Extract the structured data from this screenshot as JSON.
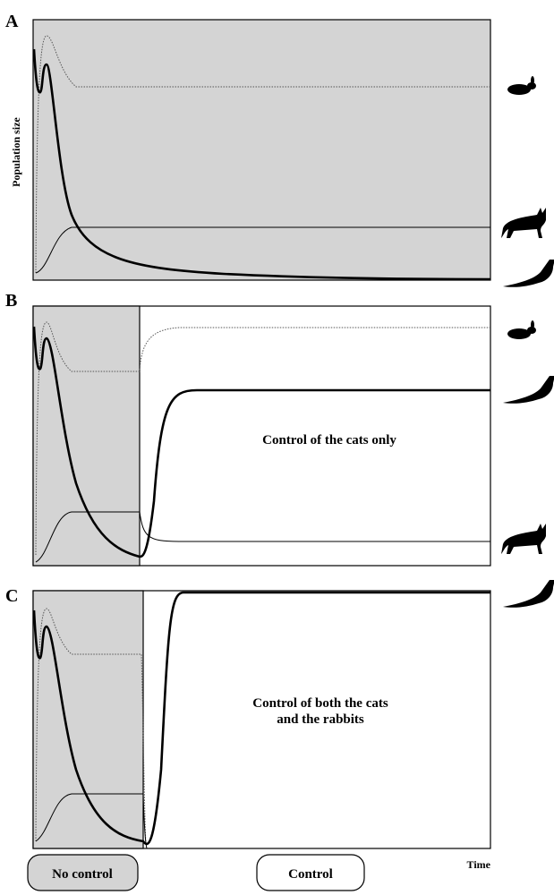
{
  "panels": [
    {
      "label": "A"
    },
    {
      "label": "B",
      "annotation": "Control of the cats only"
    },
    {
      "label": "C",
      "annotation_lines": [
        "Control of both the cats",
        "and the rabbits"
      ]
    }
  ],
  "y_axis_label": "Population size",
  "x_axis_label": "Time",
  "legend": {
    "shaded": "No control",
    "unshaded": "Control"
  }
}
